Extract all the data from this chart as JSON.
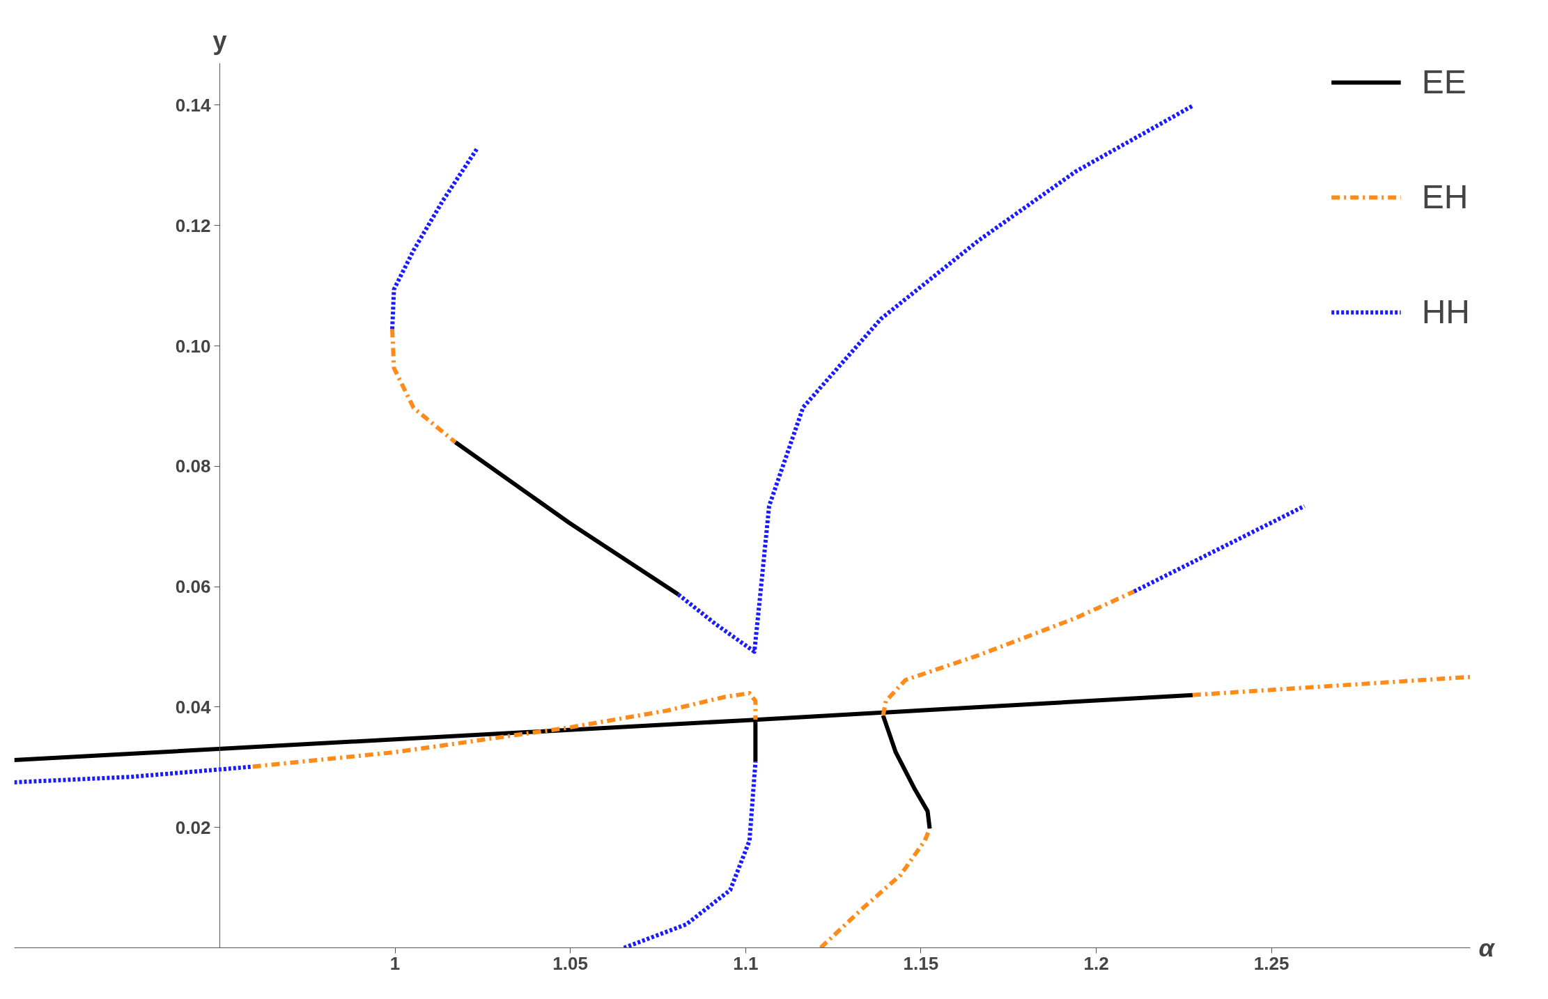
{
  "chart_data": {
    "type": "line",
    "xlabel": "α",
    "ylabel": "y",
    "xlim": [
      0.8914,
      1.3067
    ],
    "ylim": [
      0,
      0.147
    ],
    "xticks": [
      1,
      1.05,
      1.1,
      1.15,
      1.2,
      1.25
    ],
    "yticks": [
      0.02,
      0.04,
      0.06,
      0.08,
      {
        "value": 0.1,
        "label": "0.10"
      },
      0.12,
      0.14
    ],
    "legend": "top right",
    "grid": false,
    "marker": "none",
    "series": [
      {
        "name": "EE",
        "color": "#000000",
        "line_style": "solid",
        "x": [
          0.8914,
          1.1,
          1.2275,
          null,
          1.0172,
          1.0497,
          1.0808,
          null,
          1.1028,
          1.1028,
          null,
          1.1392,
          1.1428,
          1.1483,
          1.1519,
          1.1525
        ],
        "values": [
          0.0312,
          0.0378,
          0.042,
          null,
          0.084,
          0.0706,
          0.0587,
          null,
          0.0379,
          0.0309,
          null,
          0.0386,
          0.0325,
          0.0263,
          0.0227,
          0.0198
        ]
      },
      {
        "name": "EH",
        "color": "#ff8c1a",
        "line_style": "dashed",
        "x": [
          0.9992,
          0.9997,
          1.0053,
          1.0172,
          null,
          0.9594,
          1.0,
          1.0497,
          1.0775,
          1.0942,
          1.1011,
          1.1028,
          1.1028,
          null,
          1.1392,
          1.14,
          1.1456,
          1.1664,
          1.1942,
          1.2108,
          null,
          1.2275,
          1.3067,
          null,
          1.1214,
          1.1331,
          1.1442,
          1.1511,
          1.1525
        ],
        "values": [
          0.1028,
          0.0963,
          0.0897,
          0.084,
          null,
          0.0301,
          0.0325,
          0.0366,
          0.0394,
          0.0417,
          0.0423,
          0.041,
          0.0379,
          null,
          0.0386,
          0.041,
          0.0445,
          0.0486,
          0.0548,
          0.0592,
          null,
          0.042,
          0.045,
          null,
          0.0,
          0.0064,
          0.0121,
          0.0178,
          0.0198
        ]
      },
      {
        "name": "HH",
        "color": "#1a1aff",
        "line_style": "dotted",
        "x": [
          0.8914,
          0.9247,
          0.9594,
          null,
          1.0233,
          1.0136,
          1.0053,
          0.9997,
          0.9992,
          null,
          1.0808,
          1.0914,
          1.1025,
          1.1039,
          1.1067,
          1.1164,
          1.1386,
          1.1664,
          1.1942,
          1.2275,
          null,
          1.2108,
          1.2594,
          null,
          1.0653,
          1.0831,
          1.0956,
          1.1011,
          1.1028
        ],
        "values": [
          0.0275,
          0.0284,
          0.0301,
          null,
          0.1327,
          0.1241,
          0.1159,
          0.1094,
          0.1028,
          null,
          0.0587,
          0.0538,
          0.0492,
          0.0571,
          0.0734,
          0.0898,
          0.1045,
          0.1175,
          0.129,
          0.1399,
          null,
          0.0592,
          0.0734,
          null,
          0.0,
          0.0039,
          0.0096,
          0.0178,
          0.0309
        ]
      }
    ]
  }
}
